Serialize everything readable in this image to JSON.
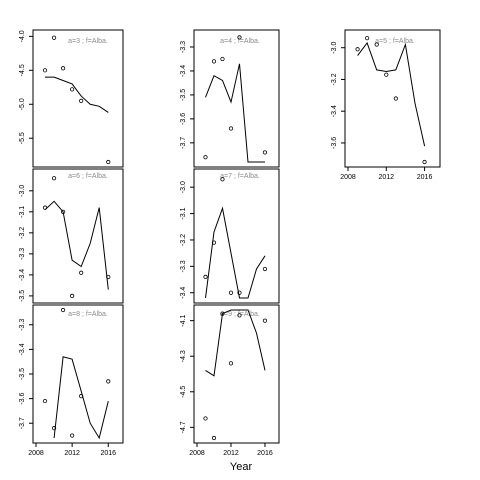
{
  "figure": {
    "xlabel": "Year"
  },
  "chart_data": [
    {
      "type": "scatter",
      "label": "a=3 ; f=Alba.",
      "x_ticks": [],
      "y_ticks": [
        "-4.0",
        "-4.5",
        "-5.0",
        "-5.5"
      ],
      "ylim": [
        -5.85,
        -3.98
      ],
      "xlim": [
        2008,
        2017.3
      ],
      "points": [
        [
          2009,
          -4.5
        ],
        [
          2010,
          -4.02
        ],
        [
          2011,
          -4.47
        ],
        [
          2012,
          -4.78
        ],
        [
          2013,
          -4.95
        ],
        [
          2016,
          -5.85
        ]
      ],
      "line": [
        [
          2009,
          -4.6
        ],
        [
          2010,
          -4.6
        ],
        [
          2011,
          -4.65
        ],
        [
          2012,
          -4.7
        ],
        [
          2013,
          -4.88
        ],
        [
          2014,
          -5.0
        ],
        [
          2015,
          -5.03
        ],
        [
          2016,
          -5.12
        ]
      ]
    },
    {
      "type": "scatter",
      "label": "a=4 ; f=Alba.",
      "x_ticks": [],
      "y_ticks": [
        "-3.3",
        "-3.4",
        "-3.5",
        "-3.6",
        "-3.7"
      ],
      "ylim": [
        -3.78,
        -3.25
      ],
      "xlim": [
        2008,
        2017.3
      ],
      "points": [
        [
          2009,
          -3.76
        ],
        [
          2010,
          -3.36
        ],
        [
          2011,
          -3.35
        ],
        [
          2012,
          -3.64
        ],
        [
          2013,
          -3.26
        ],
        [
          2016,
          -3.74
        ]
      ],
      "line": [
        [
          2009,
          -3.51
        ],
        [
          2010,
          -3.42
        ],
        [
          2011,
          -3.44
        ],
        [
          2012,
          -3.53
        ],
        [
          2013,
          -3.37
        ],
        [
          2014,
          -3.78
        ],
        [
          2016,
          -3.78
        ]
      ]
    },
    {
      "type": "scatter",
      "label": "a=5 ; f=Alba.",
      "x_ticks": [
        "2008",
        "2012",
        "2016"
      ],
      "y_ticks": [
        "-3.0",
        "-3.2",
        "-3.4",
        "-3.6"
      ],
      "ylim": [
        -3.72,
        -2.92
      ],
      "xlim": [
        2008,
        2017.3
      ],
      "points": [
        [
          2009,
          -3.01
        ],
        [
          2010,
          -2.94
        ],
        [
          2011,
          -2.98
        ],
        [
          2012,
          -3.17
        ],
        [
          2013,
          -3.32
        ],
        [
          2016,
          -3.72
        ]
      ],
      "line": [
        [
          2009,
          -3.05
        ],
        [
          2010,
          -2.97
        ],
        [
          2011,
          -3.14
        ],
        [
          2012,
          -3.15
        ],
        [
          2013,
          -3.14
        ],
        [
          2014,
          -2.98
        ],
        [
          2015,
          -3.35
        ],
        [
          2016,
          -3.62
        ]
      ]
    },
    {
      "type": "scatter",
      "label": "a=6 ; f=Alba.",
      "x_ticks": [],
      "y_ticks": [
        "-3.0",
        "-3.1",
        "-3.2",
        "-3.3",
        "-3.4",
        "-3.5"
      ],
      "ylim": [
        -3.51,
        -2.92
      ],
      "xlim": [
        2008,
        2017.3
      ],
      "points": [
        [
          2009,
          -3.08
        ],
        [
          2010,
          -2.94
        ],
        [
          2011,
          -3.1
        ],
        [
          2012,
          -3.5
        ],
        [
          2013,
          -3.39
        ],
        [
          2016,
          -3.41
        ]
      ],
      "line": [
        [
          2009,
          -3.09
        ],
        [
          2010,
          -3.05
        ],
        [
          2011,
          -3.1
        ],
        [
          2012,
          -3.33
        ],
        [
          2013,
          -3.36
        ],
        [
          2014,
          -3.25
        ],
        [
          2015,
          -3.08
        ],
        [
          2016,
          -3.47
        ]
      ]
    },
    {
      "type": "scatter",
      "label": "a=7 ; f=Alba.",
      "x_ticks": [],
      "y_ticks": [
        "-3.0",
        "-3.1",
        "-3.2",
        "-3.3",
        "-3.4"
      ],
      "ylim": [
        -3.42,
        -2.95
      ],
      "xlim": [
        2008,
        2017.3
      ],
      "points": [
        [
          2009,
          -3.34
        ],
        [
          2010,
          -3.21
        ],
        [
          2011,
          -2.97
        ],
        [
          2012,
          -3.4
        ],
        [
          2013,
          -3.4
        ],
        [
          2016,
          -3.31
        ]
      ],
      "line": [
        [
          2009,
          -3.42
        ],
        [
          2010,
          -3.17
        ],
        [
          2011,
          -3.08
        ],
        [
          2012,
          -3.25
        ],
        [
          2013,
          -3.42
        ],
        [
          2014,
          -3.42
        ],
        [
          2015,
          -3.31
        ],
        [
          2016,
          -3.26
        ]
      ]
    },
    {
      "type": "scatter",
      "label": "a=8 ; f=Alba.",
      "x_ticks": [
        "2008",
        "2012",
        "2016"
      ],
      "y_ticks": [
        "-3.3",
        "-3.4",
        "-3.5",
        "-3.6",
        "-3.7"
      ],
      "ylim": [
        -3.76,
        -3.24
      ],
      "xlim": [
        2008,
        2017.3
      ],
      "points": [
        [
          2009,
          -3.61
        ],
        [
          2010,
          -3.72
        ],
        [
          2011,
          -3.24
        ],
        [
          2012,
          -3.75
        ],
        [
          2013,
          -3.59
        ],
        [
          2016,
          -3.53
        ]
      ],
      "line": [
        [
          2010,
          -3.76
        ],
        [
          2011,
          -3.43
        ],
        [
          2012,
          -3.44
        ],
        [
          2013,
          -3.57
        ],
        [
          2014,
          -3.7
        ],
        [
          2015,
          -3.76
        ],
        [
          2016,
          -3.61
        ]
      ]
    },
    {
      "type": "scatter",
      "label": "a=9 ; f=Alba.",
      "x_ticks": [
        "2008",
        "2012",
        "2016"
      ],
      "y_ticks": [
        "-4.1",
        "-4.3",
        "-4.5",
        "-4.7"
      ],
      "ylim": [
        -4.76,
        -4.04
      ],
      "xlim": [
        2008,
        2017.3
      ],
      "points": [
        [
          2009,
          -4.65
        ],
        [
          2010,
          -4.76
        ],
        [
          2011,
          -4.06
        ],
        [
          2012,
          -4.34
        ],
        [
          2013,
          -4.07
        ],
        [
          2016,
          -4.1
        ]
      ],
      "line": [
        [
          2009,
          -4.38
        ],
        [
          2010,
          -4.41
        ],
        [
          2011,
          -4.06
        ],
        [
          2012,
          -4.04
        ],
        [
          2013,
          -4.04
        ],
        [
          2014,
          -4.04
        ],
        [
          2015,
          -4.17
        ],
        [
          2016,
          -4.38
        ]
      ]
    }
  ]
}
